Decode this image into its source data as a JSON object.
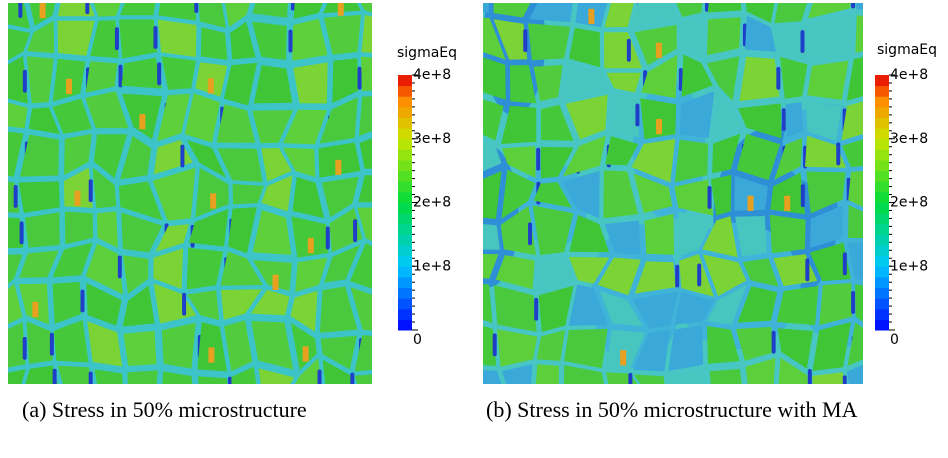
{
  "panels": [
    {
      "colorbar": {
        "title": "sigmaEq",
        "ticks": [
          {
            "value": 0,
            "label": "0"
          },
          {
            "value": 100000000,
            "label": "1e+8"
          },
          {
            "value": 200000000,
            "label": "2e+8"
          },
          {
            "value": 300000000,
            "label": "3e+8"
          },
          {
            "value": 400000000,
            "label": "4e+8"
          }
        ]
      },
      "caption": "(a) Stress in 50% microstructure"
    },
    {
      "colorbar": {
        "title": "sigmaEq",
        "ticks": [
          {
            "value": 0,
            "label": "0"
          },
          {
            "value": 100000000,
            "label": "1e+8"
          },
          {
            "value": 200000000,
            "label": "2e+8"
          },
          {
            "value": 300000000,
            "label": "3e+8"
          },
          {
            "value": 400000000,
            "label": "4e+8"
          }
        ]
      },
      "caption": "(b) Stress in 50% microstructure with MA"
    }
  ]
}
